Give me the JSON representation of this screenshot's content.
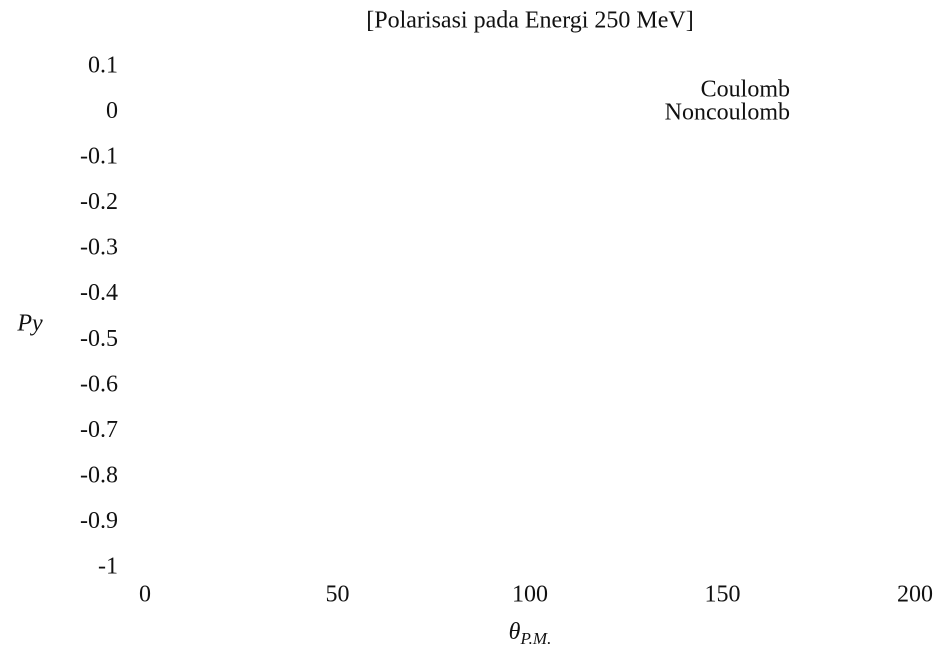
{
  "chart_data": {
    "type": "line",
    "title": "[Polarisasi pada Energi 250 MeV]",
    "xlabel": {
      "text": "θ",
      "subscript": "P.M."
    },
    "ylabel": "Py",
    "x": [],
    "series": [
      {
        "name": "Coulomb",
        "values": []
      },
      {
        "name": "Noncoulomb",
        "values": []
      }
    ],
    "xlim": [
      0,
      200
    ],
    "xticks": [
      0,
      50,
      100,
      150,
      200
    ],
    "ylim": [
      -1,
      0.1
    ],
    "yticks": [
      0.1,
      0,
      -0.1,
      -0.2,
      -0.3,
      -0.4,
      -0.5,
      -0.6,
      -0.7,
      -0.8,
      -0.9,
      -1
    ],
    "grid": false
  }
}
